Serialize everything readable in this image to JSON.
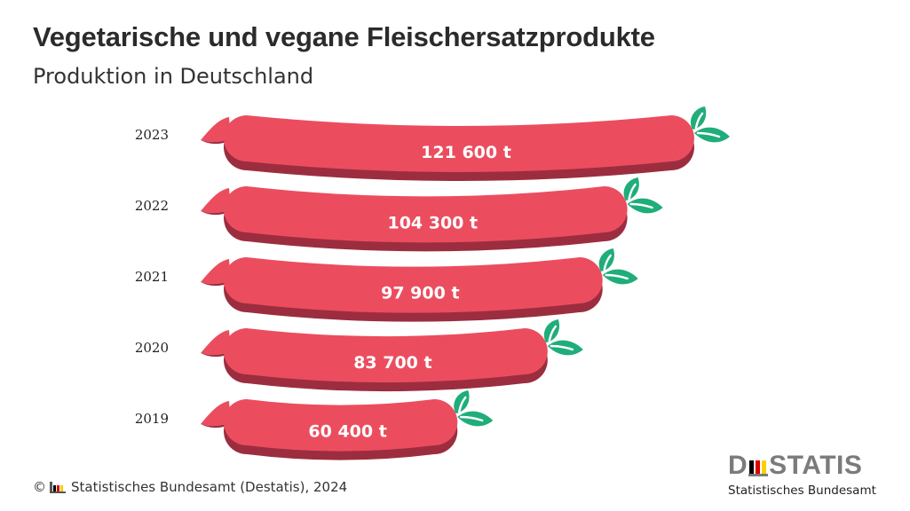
{
  "header": {
    "title": "Vegetarische und vegane Fleischersatzprodukte",
    "subtitle": "Produktion in Deutschland"
  },
  "footer": {
    "copyright_symbol": "©",
    "source": "Statistisches Bundesamt (Destatis), 2024"
  },
  "logo": {
    "word_start": "D",
    "word_end": "STATIS",
    "subtitle": "Statistisches Bundesamt"
  },
  "colors": {
    "sausage_top": "#eb4d5f",
    "sausage_shade": "#9c2d3f",
    "leaf": "#1fad7a",
    "flag_black": "#000000",
    "flag_red": "#dd0000",
    "flag_gold": "#ffce00"
  },
  "chart_data": {
    "type": "bar",
    "orientation": "horizontal",
    "title": "Vegetarische und vegane Fleischersatzprodukte",
    "subtitle": "Produktion in Deutschland",
    "categories": [
      "2023",
      "2022",
      "2021",
      "2020",
      "2019"
    ],
    "values": [
      121600,
      104300,
      97900,
      83700,
      60400
    ],
    "data_labels": [
      "121 600 t",
      "104 300 t",
      "97 900 t",
      "83 700 t",
      "60 400 t"
    ],
    "unit": "t",
    "xlabel": "",
    "ylabel": "",
    "grid": false,
    "legend": "none"
  }
}
